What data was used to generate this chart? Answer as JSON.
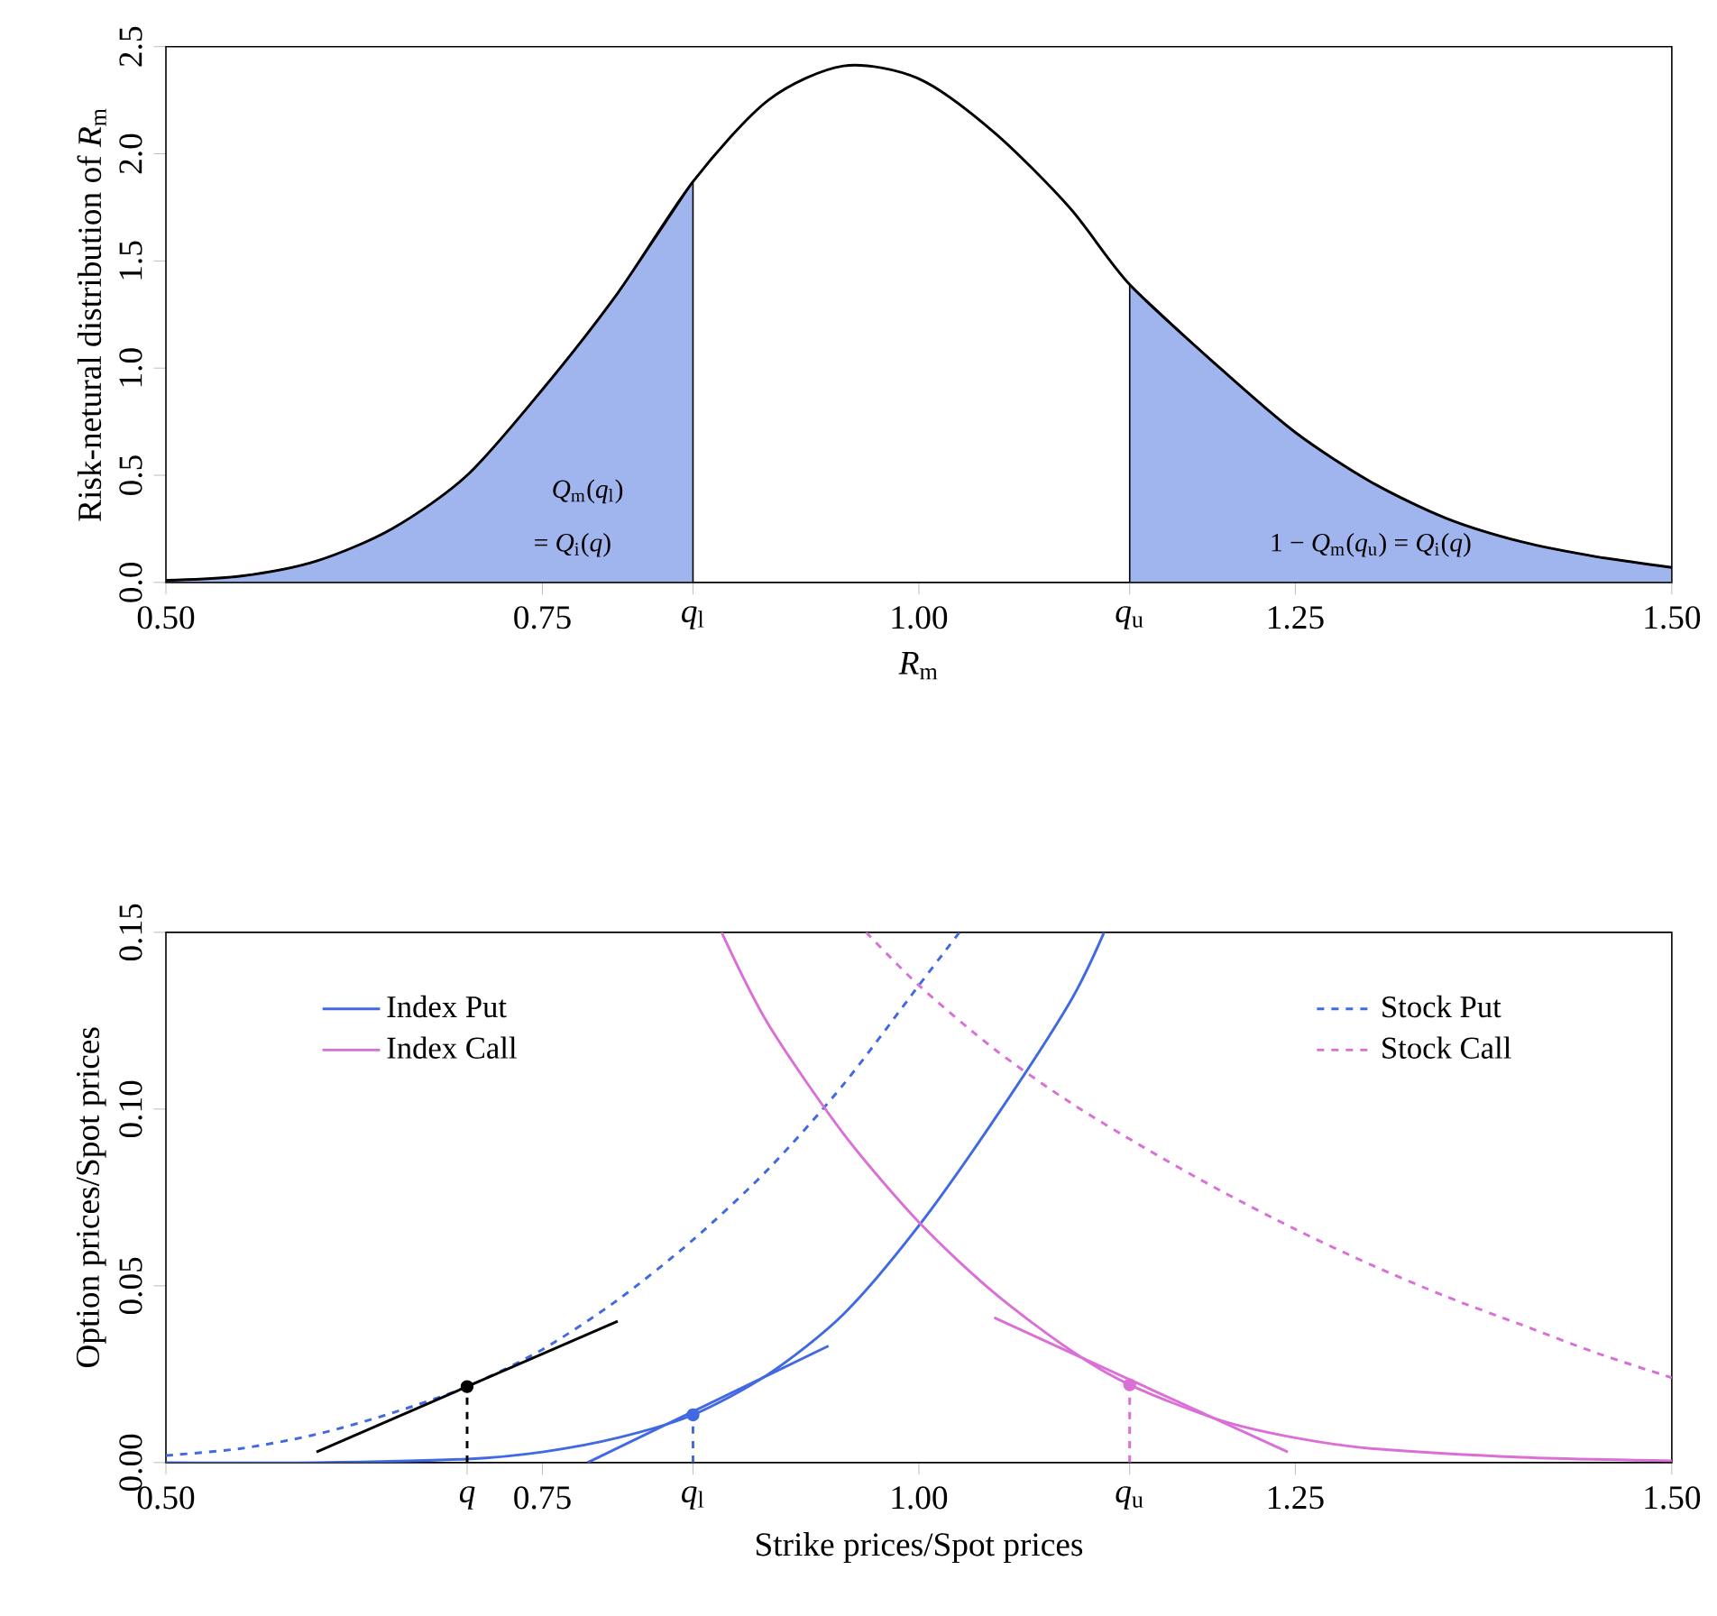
{
  "chart_data": [
    {
      "type": "line",
      "ylabel": "Risk-netural distribution of *R*$_{m}$",
      "xlabel": "*R*$_{m}$",
      "xlim": [
        0.5,
        1.5
      ],
      "ylim": [
        0,
        2.5
      ],
      "xticks": [
        {
          "value": 0.5,
          "label": "0.50"
        },
        {
          "value": 0.75,
          "label": "0.75"
        },
        {
          "value": 1.0,
          "label": "1.00"
        },
        {
          "value": 1.25,
          "label": "1.25"
        },
        {
          "value": 1.5,
          "label": "1.50"
        },
        {
          "value": 0.85,
          "label": "*q*$_{l}$"
        },
        {
          "value": 1.14,
          "label": "*q*$_{u}$"
        }
      ],
      "yticks": [
        {
          "value": 0,
          "label": "0.0"
        },
        {
          "value": 0.5,
          "label": "0.5"
        },
        {
          "value": 1.0,
          "label": "1.0"
        },
        {
          "value": 1.5,
          "label": "1.5"
        },
        {
          "value": 2.0,
          "label": "2.0"
        },
        {
          "value": 2.5,
          "label": "2.5"
        }
      ],
      "series": [
        {
          "type": "area",
          "color": "#a0b4ee",
          "x": [
            0.5,
            0.55,
            0.6,
            0.65,
            0.7,
            0.75,
            0.8,
            0.85
          ],
          "values": [
            0.01,
            0.03,
            0.1,
            0.25,
            0.5,
            0.9,
            1.35,
            1.87
          ]
        },
        {
          "type": "area",
          "color": "#a0b4ee",
          "x": [
            1.14,
            1.2,
            1.25,
            1.3,
            1.35,
            1.4,
            1.45,
            1.5
          ],
          "values": [
            1.39,
            1.0,
            0.7,
            0.47,
            0.3,
            0.19,
            0.12,
            0.07
          ]
        },
        {
          "type": "line",
          "color": "#000000",
          "x": [
            0.5,
            0.55,
            0.6,
            0.65,
            0.7,
            0.75,
            0.8,
            0.85,
            0.9,
            0.95,
            1.0,
            1.05,
            1.1,
            1.14,
            1.2,
            1.25,
            1.3,
            1.35,
            1.4,
            1.45,
            1.5
          ],
          "values": [
            0.01,
            0.03,
            0.1,
            0.25,
            0.5,
            0.9,
            1.35,
            1.87,
            2.25,
            2.41,
            2.35,
            2.1,
            1.75,
            1.39,
            1.0,
            0.7,
            0.47,
            0.3,
            0.19,
            0.12,
            0.07
          ]
        }
      ],
      "annotations": [
        "*Q*$_{m}$(*q*$_{l}$)",
        "= *Q*$_{i}$(*q*)",
        "1 − *Q*$_{m}$(*q*$_{u}$) = *Q*$_{i}$(*q*)"
      ]
    },
    {
      "type": "line",
      "ylabel": "Option prices/Spot prices",
      "xlabel": "Strike prices/Spot prices",
      "xlim": [
        0.5,
        1.5
      ],
      "ylim": [
        0,
        0.15
      ],
      "legend": "top",
      "xticks": [
        {
          "value": 0.5,
          "label": "0.50"
        },
        {
          "value": 0.75,
          "label": "0.75"
        },
        {
          "value": 1.0,
          "label": "1.00"
        },
        {
          "value": 1.25,
          "label": "1.25"
        },
        {
          "value": 1.5,
          "label": "1.50"
        },
        {
          "value": 0.7,
          "label": "*q*"
        },
        {
          "value": 0.85,
          "label": "*q*$_{l}$"
        },
        {
          "value": 1.14,
          "label": "*q*$_{u}$"
        }
      ],
      "yticks": [
        {
          "value": 0,
          "label": "0.00"
        },
        {
          "value": 0.05,
          "label": "0.05"
        },
        {
          "value": 0.1,
          "label": "0.10"
        },
        {
          "value": 0.15,
          "label": "0.15"
        }
      ],
      "series": [
        {
          "name": "Index Put",
          "color": "#4169e1",
          "line_style": "solid",
          "x": [
            0.5,
            0.6,
            0.7,
            0.75,
            0.8,
            0.85,
            0.9,
            0.95,
            1.0,
            1.05,
            1.1,
            1.123
          ],
          "values": [
            0,
            0,
            0.001,
            0.003,
            0.007,
            0.0135,
            0.025,
            0.042,
            0.067,
            0.097,
            0.13,
            0.15
          ]
        },
        {
          "name": "Stock Put",
          "color": "#4169e1",
          "line_style": "dashed",
          "x": [
            0.5,
            0.55,
            0.6,
            0.65,
            0.7,
            0.75,
            0.8,
            0.85,
            0.9,
            0.95,
            1.0,
            1.027
          ],
          "values": [
            0.002,
            0.004,
            0.008,
            0.014,
            0.0215,
            0.032,
            0.046,
            0.063,
            0.083,
            0.107,
            0.135,
            0.15
          ]
        },
        {
          "name": "Index Call",
          "color": "#da70d6",
          "line_style": "solid",
          "x": [
            0.869,
            0.9,
            0.95,
            1.0,
            1.05,
            1.1,
            1.14,
            1.2,
            1.25,
            1.3,
            1.4,
            1.5
          ],
          "values": [
            0.15,
            0.124,
            0.093,
            0.068,
            0.048,
            0.032,
            0.022,
            0.012,
            0.007,
            0.004,
            0.0015,
            0.0005
          ]
        },
        {
          "name": "Stock Call",
          "color": "#da70d6",
          "line_style": "dashed",
          "x": [
            0.965,
            1.0,
            1.05,
            1.1,
            1.15,
            1.2,
            1.25,
            1.3,
            1.35,
            1.4,
            1.45,
            1.5
          ],
          "values": [
            0.15,
            0.135,
            0.117,
            0.102,
            0.089,
            0.077,
            0.066,
            0.056,
            0.047,
            0.039,
            0.031,
            0.024
          ]
        },
        {
          "type": "line",
          "color": "#000000",
          "line_style": "solid",
          "x": [
            0.6,
            0.8
          ],
          "values": [
            0.003,
            0.04
          ]
        },
        {
          "type": "line",
          "color": "#4169e1",
          "line_style": "solid",
          "x": [
            0.78,
            0.94
          ],
          "values": [
            0,
            0.033
          ]
        },
        {
          "type": "line",
          "color": "#da70d6",
          "line_style": "solid",
          "x": [
            1.05,
            1.245
          ],
          "values": [
            0.041,
            0.003
          ]
        },
        {
          "type": "line",
          "color": "#000000",
          "line_style": "dashed",
          "x": [
            0.7,
            0.7
          ],
          "values": [
            0,
            0.0215
          ]
        },
        {
          "type": "line",
          "color": "#4169e1",
          "line_style": "dashed",
          "x": [
            0.85,
            0.85
          ],
          "values": [
            0,
            0.0135
          ]
        },
        {
          "type": "line",
          "color": "#da70d6",
          "line_style": "dashed",
          "x": [
            1.14,
            1.14
          ],
          "values": [
            0,
            0.022
          ]
        },
        {
          "type": "scatter",
          "marker": "circle",
          "color": "#000000",
          "x": [
            0.7
          ],
          "values": [
            0.0215
          ]
        },
        {
          "type": "scatter",
          "marker": "circle",
          "color": "#4169e1",
          "x": [
            0.85
          ],
          "values": [
            0.0135
          ]
        },
        {
          "type": "scatter",
          "marker": "circle",
          "color": "#da70d6",
          "x": [
            1.14
          ],
          "values": [
            0.022
          ]
        }
      ]
    }
  ]
}
